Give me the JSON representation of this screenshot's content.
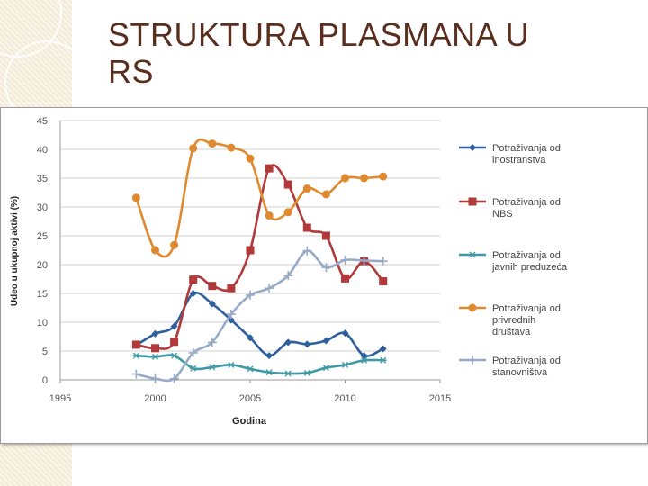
{
  "slide": {
    "title_line1": "STRUKTURA PLASMANA U",
    "title_line2": "RS"
  },
  "chart_data": {
    "type": "line",
    "title": "STRUKTURA PLASMANA U RS",
    "xlabel": "Godina",
    "ylabel": "Udeo u ukupnoj aktivi (%)",
    "xlim": [
      1995,
      2015
    ],
    "ylim": [
      0,
      45
    ],
    "xticks": [
      1995,
      2000,
      2005,
      2010,
      2015
    ],
    "yticks": [
      0,
      5,
      10,
      15,
      20,
      25,
      30,
      35,
      40,
      45
    ],
    "legend_position": "right",
    "series": [
      {
        "name": "Potraživanja od inostranstva",
        "legend_lines": [
          "Potraživanja od",
          "inostranstva"
        ],
        "color": "#2e5f9e",
        "marker": "diamond",
        "x": [
          1999,
          2000,
          2001,
          2002,
          2003,
          2004,
          2005,
          2006,
          2007,
          2008,
          2009,
          2010,
          2011,
          2012
        ],
        "y": [
          6.0,
          8.0,
          9.3,
          15.0,
          13.2,
          10.4,
          7.3,
          4.2,
          6.5,
          6.2,
          6.8,
          8.1,
          4.2,
          5.4
        ]
      },
      {
        "name": "Potraživanja od NBS",
        "legend_lines": [
          "Potraživanja od",
          "NBS"
        ],
        "color": "#b2393a",
        "marker": "square",
        "x": [
          1999,
          2000,
          2001,
          2002,
          2003,
          2004,
          2005,
          2006,
          2007,
          2008,
          2009,
          2010,
          2011,
          2012
        ],
        "y": [
          6.1,
          5.5,
          6.6,
          17.4,
          16.3,
          15.9,
          22.5,
          36.7,
          33.9,
          26.4,
          25.0,
          17.6,
          20.6,
          17.1
        ]
      },
      {
        "name": "Potraživanja od javnih preduzeća",
        "legend_lines": [
          "Potraživanja od",
          "javnih preduzeća"
        ],
        "color": "#3f9aa6",
        "marker": "star",
        "x": [
          1999,
          2000,
          2001,
          2002,
          2003,
          2004,
          2005,
          2006,
          2007,
          2008,
          2009,
          2010,
          2011,
          2012
        ],
        "y": [
          4.2,
          4.0,
          4.2,
          2.0,
          2.2,
          2.6,
          1.9,
          1.3,
          1.1,
          1.2,
          2.1,
          2.6,
          3.4,
          3.4
        ]
      },
      {
        "name": "Potraživanja od privrednih društava",
        "legend_lines": [
          "Potraživanja od",
          "privrednih",
          "društava"
        ],
        "color": "#e08a30",
        "marker": "circle",
        "x": [
          1999,
          2000,
          2001,
          2002,
          2003,
          2004,
          2005,
          2006,
          2007,
          2008,
          2009,
          2010,
          2011,
          2012
        ],
        "y": [
          31.6,
          22.5,
          23.4,
          40.2,
          41.0,
          40.3,
          38.4,
          28.5,
          29.1,
          33.2,
          32.2,
          35.0,
          35.0,
          35.3
        ]
      },
      {
        "name": "Potraživanja od stanovništva",
        "legend_lines": [
          "Potraživanja od",
          "stanovništva"
        ],
        "color": "#98aac8",
        "marker": "plus",
        "x": [
          1999,
          2000,
          2001,
          2002,
          2003,
          2004,
          2005,
          2006,
          2007,
          2008,
          2009,
          2010,
          2011,
          2012
        ],
        "y": [
          1.0,
          0.2,
          0.2,
          4.7,
          6.5,
          11.4,
          14.7,
          15.9,
          18.1,
          22.4,
          19.5,
          20.8,
          20.7,
          20.6
        ]
      }
    ]
  }
}
